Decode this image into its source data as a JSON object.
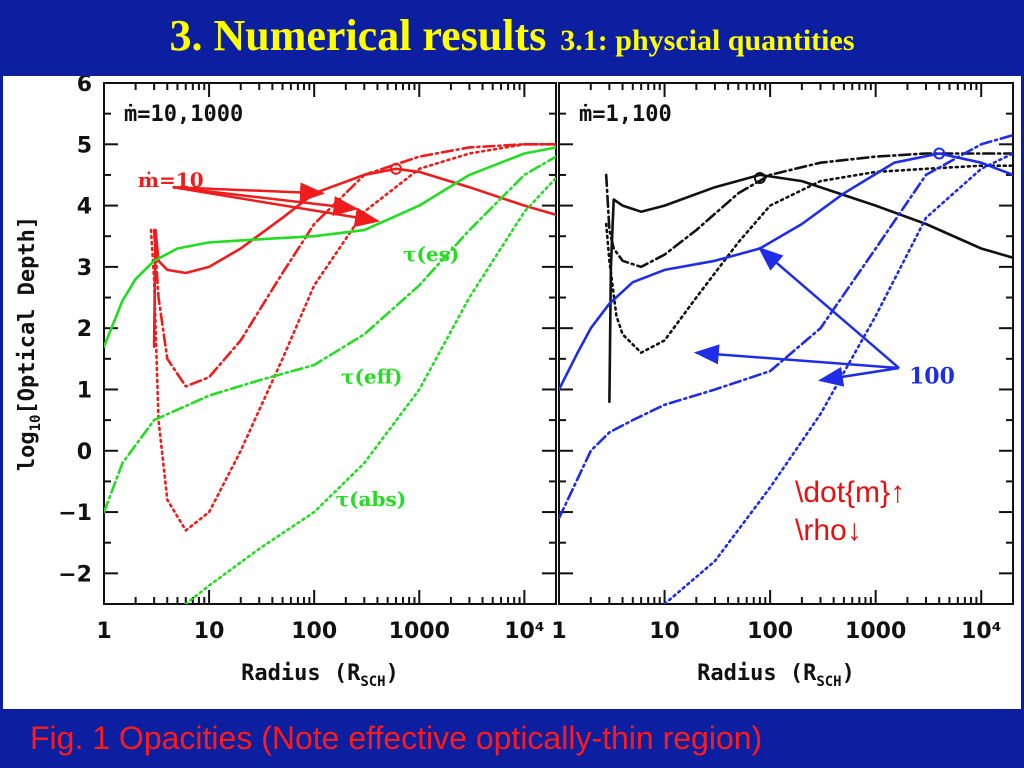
{
  "header": {
    "title": "3. Numerical results",
    "subtitle": "3.1: physcial quantities"
  },
  "caption": "Fig. 1 Opacities (Note effective optically-thin region)",
  "note": {
    "line1": "\\dot{m}↑",
    "line2": "\\rho↓"
  },
  "colors": {
    "background": "#0b1fa0",
    "title": "#ffff00",
    "caption": "#ff1a1a",
    "red": "#ee1c1c",
    "green": "#22dd22",
    "blue": "#1f2ee6",
    "black": "#111111"
  },
  "chart_data": [
    {
      "type": "line",
      "panel": "left",
      "annotation_top": "ṁ=10,1000",
      "xlabel": "Radius (R",
      "xlabel_sub": "SCH",
      "xlabel_end": ")",
      "ylabel": "log",
      "ylabel_sub": "10",
      "ylabel_end": "[Optical Depth]",
      "x_scale": "log",
      "xlim": [
        1,
        20000
      ],
      "ylim": [
        -2.5,
        6
      ],
      "x_tick_labels": [
        "1",
        "10",
        "100",
        "1000",
        "10⁴"
      ],
      "x_ticks": [
        1,
        10,
        100,
        1000,
        10000
      ],
      "y_ticks": [
        6,
        5,
        4,
        3,
        2,
        1,
        0,
        -1,
        -2
      ],
      "y_tick_labels": [
        "6",
        "5",
        "4",
        "3",
        "2",
        "1",
        "0",
        "−1",
        "−2"
      ],
      "labels": [
        {
          "text": "ṁ=10",
          "color": "red",
          "x": 2.1,
          "y": 4.3
        },
        {
          "text": "τ(es)",
          "color": "green",
          "x": 700,
          "y": 3.1
        },
        {
          "text": "τ(eff)",
          "color": "green",
          "x": 180,
          "y": 1.1
        },
        {
          "text": "τ(abs)",
          "color": "green",
          "x": 160,
          "y": -0.9
        }
      ],
      "series": [
        {
          "color": "red",
          "style": "solid",
          "x": [
            3.0,
            3.05,
            3.1,
            3.3,
            4,
            6,
            10,
            20,
            50,
            100,
            300,
            600,
            1000,
            3000,
            10000,
            20000
          ],
          "y": [
            1.7,
            2.8,
            3.6,
            3.1,
            2.95,
            2.9,
            3.0,
            3.3,
            3.8,
            4.2,
            4.5,
            4.6,
            4.55,
            4.3,
            4.0,
            3.85
          ]
        },
        {
          "color": "red",
          "style": "dashdot",
          "x": [
            3,
            3.3,
            4,
            6,
            10,
            20,
            50,
            100,
            300,
            1000,
            3000,
            10000,
            20000
          ],
          "y": [
            3.6,
            2.5,
            1.5,
            1.05,
            1.2,
            1.8,
            2.9,
            3.7,
            4.5,
            4.8,
            4.95,
            5.0,
            5.0
          ]
        },
        {
          "color": "red",
          "style": "dotted",
          "x": [
            2.8,
            3,
            3.3,
            4,
            6,
            10,
            20,
            50,
            100,
            300,
            1000,
            3000,
            10000,
            20000
          ],
          "y": [
            3.6,
            2.8,
            0.5,
            -0.8,
            -1.3,
            -1.0,
            0.0,
            1.5,
            2.7,
            3.9,
            4.6,
            4.85,
            5.0,
            5.0
          ]
        },
        {
          "color": "green",
          "style": "solid",
          "x": [
            1,
            1.5,
            2,
            3,
            5,
            10,
            30,
            100,
            300,
            1000,
            3000,
            10000,
            20000
          ],
          "y": [
            1.7,
            2.45,
            2.8,
            3.1,
            3.3,
            3.4,
            3.45,
            3.5,
            3.6,
            4.0,
            4.5,
            4.85,
            4.95
          ]
        },
        {
          "color": "green",
          "style": "dashdot",
          "x": [
            1,
            1.5,
            3,
            10,
            30,
            100,
            300,
            1000,
            3000,
            10000,
            20000
          ],
          "y": [
            -1.0,
            -0.2,
            0.5,
            0.9,
            1.15,
            1.4,
            1.9,
            2.7,
            3.6,
            4.5,
            4.8
          ]
        },
        {
          "color": "green",
          "style": "dotted",
          "x": [
            6,
            10,
            30,
            100,
            300,
            1000,
            3000,
            10000,
            20000
          ],
          "y": [
            -2.5,
            -2.2,
            -1.6,
            -1.0,
            -0.2,
            1.0,
            2.5,
            3.9,
            4.45
          ]
        }
      ]
    },
    {
      "type": "line",
      "panel": "right",
      "annotation_top": "ṁ=1,100",
      "annotation_arrow": "100",
      "xlabel": "Radius (R",
      "xlabel_sub": "SCH",
      "xlabel_end": ")",
      "x_scale": "log",
      "xlim": [
        1,
        20000
      ],
      "ylim": [
        -2.5,
        6
      ],
      "x_tick_labels": [
        "1",
        "10",
        "100",
        "1000",
        "10⁴"
      ],
      "x_ticks": [
        1,
        10,
        100,
        1000,
        10000
      ],
      "series": [
        {
          "color": "black",
          "style": "solid",
          "x": [
            3.0,
            3.1,
            3.3,
            4,
            6,
            10,
            30,
            80,
            200,
            1000,
            3000,
            10000,
            20000
          ],
          "y": [
            0.8,
            3.0,
            4.1,
            4.0,
            3.9,
            4.0,
            4.3,
            4.5,
            4.4,
            4.0,
            3.7,
            3.3,
            3.15
          ]
        },
        {
          "color": "black",
          "style": "dashdot",
          "x": [
            2.8,
            3,
            3.3,
            4,
            6,
            10,
            20,
            50,
            100,
            300,
            1000,
            3000,
            10000,
            20000
          ],
          "y": [
            4.5,
            3.6,
            3.3,
            3.1,
            3.0,
            3.2,
            3.6,
            4.2,
            4.5,
            4.7,
            4.8,
            4.85,
            4.85,
            4.85
          ]
        },
        {
          "color": "black",
          "style": "dotted",
          "x": [
            2.8,
            3,
            3.5,
            4,
            6,
            10,
            20,
            50,
            100,
            300,
            1000,
            3000,
            10000,
            20000
          ],
          "y": [
            3.7,
            3.1,
            2.2,
            1.9,
            1.6,
            1.8,
            2.5,
            3.4,
            4.0,
            4.4,
            4.55,
            4.6,
            4.65,
            4.65
          ]
        },
        {
          "color": "blue",
          "style": "solid",
          "x": [
            1,
            1.5,
            2,
            3,
            5,
            10,
            30,
            80,
            200,
            500,
            1500,
            4000,
            10000,
            20000
          ],
          "y": [
            1.0,
            1.6,
            2.0,
            2.4,
            2.75,
            2.95,
            3.1,
            3.3,
            3.7,
            4.2,
            4.7,
            4.85,
            4.7,
            4.5
          ]
        },
        {
          "color": "blue",
          "style": "dashdot",
          "x": [
            1,
            2,
            3,
            5,
            10,
            30,
            100,
            300,
            1000,
            3000,
            10000,
            20000
          ],
          "y": [
            -1.1,
            0.0,
            0.3,
            0.5,
            0.75,
            1.0,
            1.3,
            2.0,
            3.3,
            4.5,
            5.0,
            5.15
          ]
        },
        {
          "color": "blue",
          "style": "dotted",
          "x": [
            10,
            30,
            100,
            300,
            1000,
            3000,
            10000,
            20000
          ],
          "y": [
            -2.5,
            -1.8,
            -0.6,
            0.6,
            2.2,
            3.8,
            4.6,
            4.85
          ]
        }
      ]
    }
  ]
}
